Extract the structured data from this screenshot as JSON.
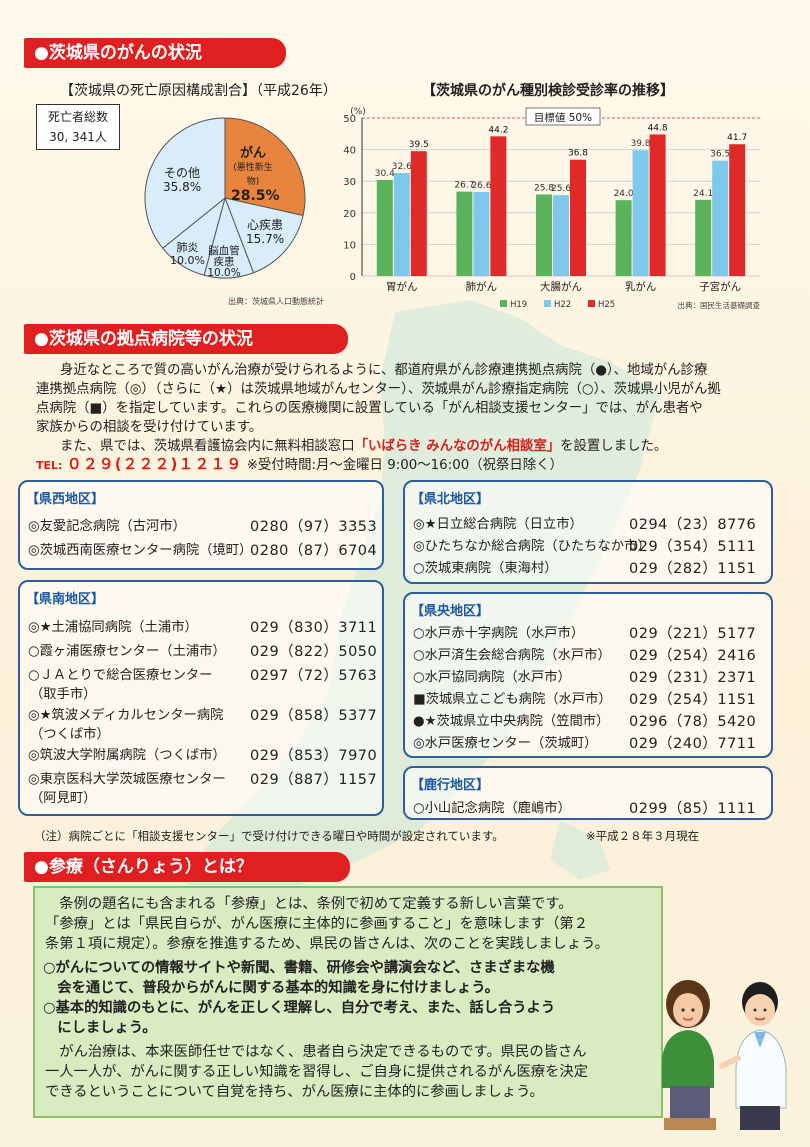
{
  "sections": {
    "status": "●茨城県のがんの状況",
    "hospitals": "●茨城県の拠点病院等の状況",
    "sanryo": "●参療（さんりょう）とは？"
  },
  "pie": {
    "title": "【茨城県の死亡原因構成割合】（平成26年）",
    "deaths_label": "死亡者総数",
    "deaths_value": "30, 341人",
    "source": "出典：茨城県人口動態統計",
    "slices": [
      {
        "label": "がん",
        "sub": "(悪性新生物)",
        "pct": "28.5%",
        "value": 28.5,
        "color": "#e9843e"
      },
      {
        "label": "心疾患",
        "sub": "",
        "pct": "15.7%",
        "value": 15.7,
        "color": "#d8ecfa"
      },
      {
        "label": "脳血管\n疾患",
        "sub": "",
        "pct": "10.0%",
        "value": 10.0,
        "color": "#d8ecfa"
      },
      {
        "label": "肺炎",
        "sub": "",
        "pct": "10.0%",
        "value": 10.0,
        "color": "#d8ecfa"
      },
      {
        "label": "その他",
        "sub": "",
        "pct": "35.8%",
        "value": 35.8,
        "color": "#d8ecfa"
      }
    ]
  },
  "chart_data": {
    "type": "bar",
    "title": "【茨城県のがん種別検診受診率の推移】",
    "ylabel": "(%)",
    "ylim": [
      0,
      50
    ],
    "yticks": [
      0,
      10,
      20,
      30,
      40,
      50
    ],
    "categories": [
      "胃がん",
      "肺がん",
      "大腸がん",
      "乳がん",
      "子宮がん"
    ],
    "series": [
      {
        "name": "H19",
        "color": "#5ab35a",
        "values": [
          30.4,
          26.7,
          25.8,
          24.0,
          24.1
        ]
      },
      {
        "name": "H22",
        "color": "#7ec8ec",
        "values": [
          32.6,
          26.6,
          25.6,
          39.8,
          36.5
        ]
      },
      {
        "name": "H25",
        "color": "#e02a2a",
        "values": [
          39.5,
          44.2,
          36.8,
          44.8,
          41.7
        ]
      }
    ],
    "target_label": "目標値 50%",
    "target_value": 50,
    "source": "出典：国民生活基礎調査",
    "legend_position": "bottom"
  },
  "intro": {
    "lines": [
      "身近なところで質の高いがん治療が受けられるように、都道府県がん診療連携拠点病院（●）、地域がん診療",
      "連携拠点病院（◎）（さらに（★）は茨城県地域がんセンター）、茨城県がん診療指定病院（○）、茨城県小児がん拠",
      "点病院（■）を指定しています。これらの医療機関に設置している「がん相談支援センター」では、がん患者や",
      "家族からの相談を受け付けています。"
    ],
    "line5_pre": "また、県では、茨城県看護協会内に無料相談窓口",
    "line5_red": "「いばらき みんなのがん相談室」",
    "line5_post": "を設置しました。",
    "tel_label": "TEL:",
    "tel_number": "０２９(２２２)１２１９",
    "tel_hours": "※受付時間:月～金曜日 9:00～16:00（祝祭日除く）"
  },
  "regions": [
    {
      "title": "【県西地区】",
      "hospitals": [
        {
          "name": "◎友愛記念病院（古河市）",
          "tel": "0280（97）3353"
        },
        {
          "name": "◎茨城西南医療センター病院（境町）",
          "tel": "0280（87）6704"
        }
      ]
    },
    {
      "title": "【県南地区】",
      "hospitals": [
        {
          "name": "◎★土浦協同病院（土浦市）",
          "tel": "029（830）3711"
        },
        {
          "name": "○霞ヶ浦医療センター（土浦市）",
          "tel": "029（822）5050"
        },
        {
          "name": "○ＪＡとりで総合医療センター",
          "name2": "（取手市）",
          "tel": "0297（72）5763"
        },
        {
          "name": "◎★筑波メディカルセンター病院",
          "name2": "（つくば市）",
          "tel": "029（858）5377"
        },
        {
          "name": "◎筑波大学附属病院（つくば市）",
          "tel": "029（853）7970"
        },
        {
          "name": "◎東京医科大学茨城医療センター",
          "name2": "（阿見町）",
          "tel": "029（887）1157"
        }
      ]
    },
    {
      "title": "【県北地区】",
      "hospitals": [
        {
          "name": "◎★日立総合病院（日立市）",
          "tel": "0294（23）8776"
        },
        {
          "name": "◎ひたちなか総合病院（ひたちなか市）",
          "tel": "029（354）5111"
        },
        {
          "name": "○茨城東病院（東海村）",
          "tel": "029（282）1151"
        }
      ]
    },
    {
      "title": "【県央地区】",
      "hospitals": [
        {
          "name": "○水戸赤十字病院（水戸市）",
          "tel": "029（221）5177"
        },
        {
          "name": "○水戸済生会総合病院（水戸市）",
          "tel": "029（254）2416"
        },
        {
          "name": "○水戸協同病院（水戸市）",
          "tel": "029（231）2371"
        },
        {
          "name": "■茨城県立こども病院（水戸市）",
          "tel": "029（254）1151"
        },
        {
          "name": "●★茨城県立中央病院（笠間市）",
          "tel": "0296（78）5420"
        },
        {
          "name": "◎水戸医療センター（茨城町）",
          "tel": "029（240）7711"
        }
      ]
    },
    {
      "title": "【鹿行地区】",
      "hospitals": [
        {
          "name": "○小山記念病院（鹿嶋市）",
          "tel": "0299（85）1111"
        }
      ]
    }
  ],
  "notes": {
    "left": "（注）病院ごとに「相談支援センター」で受け付けできる曜日や時間が設定されています。",
    "right": "※平成２８年３月現在"
  },
  "sanryo": {
    "lines": [
      "　条例の題名にも含まれる「参療」とは、条例で初めて定義する新しい言葉です。",
      "「参療」とは「県民自らが、がん医療に主体的に参画すること」を意味します（第２",
      "条第１項に規定）。参療を推進するため、県民の皆さんは、次のことを実践しましょう。"
    ],
    "bullets": [
      [
        "○がんについての情報サイトや新聞、書籍、研修会や講演会など、さまざまな機",
        "　会を通じて、普段からがんに関する基本的知識を身に付けましょう。"
      ],
      [
        "○基本的知識のもとに、がんを正しく理解し、自分で考え、また、話し合うよう",
        "　にしましょう。"
      ]
    ],
    "closing": [
      "　がん治療は、本来医師任せではなく、患者自ら決定できるものです。県民の皆さん",
      "一人一人が、がんに関する正しい知識を習得し、ご自身に提供されるがん医療を決定",
      "できるということについて自覚を持ち、がん医療に主体的に参画しましょう。"
    ]
  }
}
